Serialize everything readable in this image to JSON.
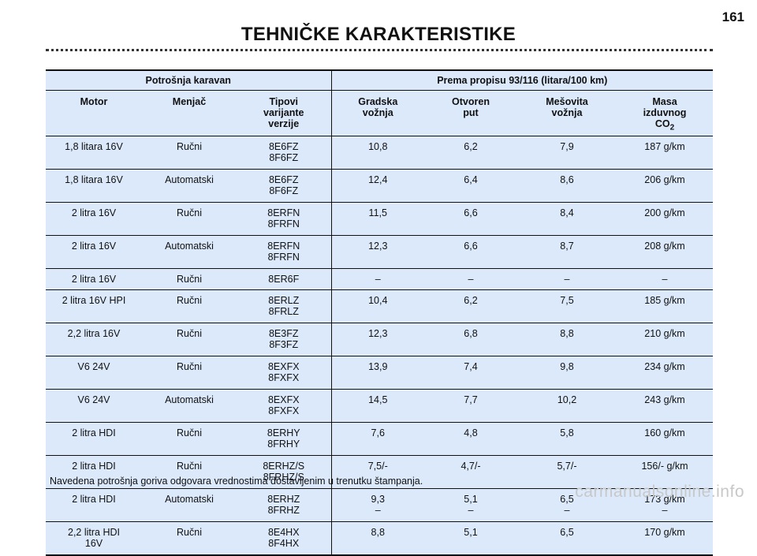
{
  "page_number": "161",
  "title": "TEHNIČKE KARAKTERISTIKE",
  "table": {
    "group_left": "Potrošnja karavan",
    "group_right": "Prema propisu 93/116 (litara/100 km)",
    "columns": [
      [
        "Motor"
      ],
      [
        "Menjač"
      ],
      [
        "Tipovi",
        "varijante",
        "verzije"
      ],
      [
        "Gradska",
        "vožnja"
      ],
      [
        "Otvoren",
        "put"
      ],
      [
        "Mešovita",
        "vožnja"
      ],
      [
        "Masa",
        "izduvnog",
        "CO",
        "2"
      ]
    ],
    "rows": [
      {
        "motor": [
          "1,8 litara 16V"
        ],
        "menjac": "Ručni",
        "tip": [
          "8E6FZ",
          "8F6FZ"
        ],
        "gradska": [
          "10,8"
        ],
        "otvoren": [
          "6,2"
        ],
        "mesovita": [
          "7,9"
        ],
        "masa": [
          "187 g/km"
        ]
      },
      {
        "motor": [
          "1,8 litara 16V"
        ],
        "menjac": "Automatski",
        "tip": [
          "8E6FZ",
          "8F6FZ"
        ],
        "gradska": [
          "12,4"
        ],
        "otvoren": [
          "6,4"
        ],
        "mesovita": [
          "8,6"
        ],
        "masa": [
          "206 g/km"
        ]
      },
      {
        "motor": [
          "2 litra 16V"
        ],
        "menjac": "Ručni",
        "tip": [
          "8ERFN",
          "8FRFN"
        ],
        "gradska": [
          "11,5"
        ],
        "otvoren": [
          "6,6"
        ],
        "mesovita": [
          "8,4"
        ],
        "masa": [
          "200 g/km"
        ]
      },
      {
        "motor": [
          "2 litra 16V"
        ],
        "menjac": "Automatski",
        "tip": [
          "8ERFN",
          "8FRFN"
        ],
        "gradska": [
          "12,3"
        ],
        "otvoren": [
          "6,6"
        ],
        "mesovita": [
          "8,7"
        ],
        "masa": [
          "208 g/km"
        ]
      },
      {
        "motor": [
          "2 litra 16V"
        ],
        "menjac": "Ručni",
        "tip": [
          "8ER6F"
        ],
        "gradska": [
          "–"
        ],
        "otvoren": [
          "–"
        ],
        "mesovita": [
          "–"
        ],
        "masa": [
          "–"
        ]
      },
      {
        "motor": [
          "2 litra 16V HPI"
        ],
        "menjac": "Ručni",
        "tip": [
          "8ERLZ",
          "8FRLZ"
        ],
        "gradska": [
          "10,4"
        ],
        "otvoren": [
          "6,2"
        ],
        "mesovita": [
          "7,5"
        ],
        "masa": [
          "185 g/km"
        ]
      },
      {
        "motor": [
          "2,2 litra 16V"
        ],
        "menjac": "Ručni",
        "tip": [
          "8E3FZ",
          "8F3FZ"
        ],
        "gradska": [
          "12,3"
        ],
        "otvoren": [
          "6,8"
        ],
        "mesovita": [
          "8,8"
        ],
        "masa": [
          "210 g/km"
        ]
      },
      {
        "motor": [
          "V6 24V"
        ],
        "menjac": "Ručni",
        "tip": [
          "8EXFX",
          "8FXFX"
        ],
        "gradska": [
          "13,9"
        ],
        "otvoren": [
          "7,4"
        ],
        "mesovita": [
          "9,8"
        ],
        "masa": [
          "234 g/km"
        ]
      },
      {
        "motor": [
          "V6 24V"
        ],
        "menjac": "Automatski",
        "tip": [
          "8EXFX",
          "8FXFX"
        ],
        "gradska": [
          "14,5"
        ],
        "otvoren": [
          "7,7"
        ],
        "mesovita": [
          "10,2"
        ],
        "masa": [
          "243 g/km"
        ]
      },
      {
        "motor": [
          "2 litra HDI"
        ],
        "menjac": "Ručni",
        "tip": [
          "8ERHY",
          "8FRHY"
        ],
        "gradska": [
          "7,6"
        ],
        "otvoren": [
          "4,8"
        ],
        "mesovita": [
          "5,8"
        ],
        "masa": [
          "160 g/km"
        ]
      },
      {
        "motor": [
          "2 litra HDI"
        ],
        "menjac": "Ručni",
        "tip": [
          "8ERHZ/S",
          "8FRHZ/S"
        ],
        "gradska": [
          "7,5/-"
        ],
        "otvoren": [
          "4,7/-"
        ],
        "mesovita": [
          "5,7/-"
        ],
        "masa": [
          "156/- g/km"
        ]
      },
      {
        "motor": [
          "2 litra HDI"
        ],
        "menjac": "Automatski",
        "tip": [
          "8ERHZ",
          "8FRHZ"
        ],
        "gradska": [
          "9,3",
          "–"
        ],
        "otvoren": [
          "5,1",
          "–"
        ],
        "mesovita": [
          "6,5",
          "–"
        ],
        "masa": [
          "173 g/km",
          "–"
        ]
      },
      {
        "motor": [
          "2,2 litra HDI",
          "16V"
        ],
        "menjac": "Ručni",
        "tip": [
          "8E4HX",
          "8F4HX"
        ],
        "gradska": [
          "8,8"
        ],
        "otvoren": [
          "5,1"
        ],
        "mesovita": [
          "6,5"
        ],
        "masa": [
          "170 g/km"
        ]
      }
    ]
  },
  "footnote": "Navedena potrošnja goriva odgovara vrednostima dostavljenim u trenutku štampanja.",
  "watermark": "carmanualsonline.info"
}
